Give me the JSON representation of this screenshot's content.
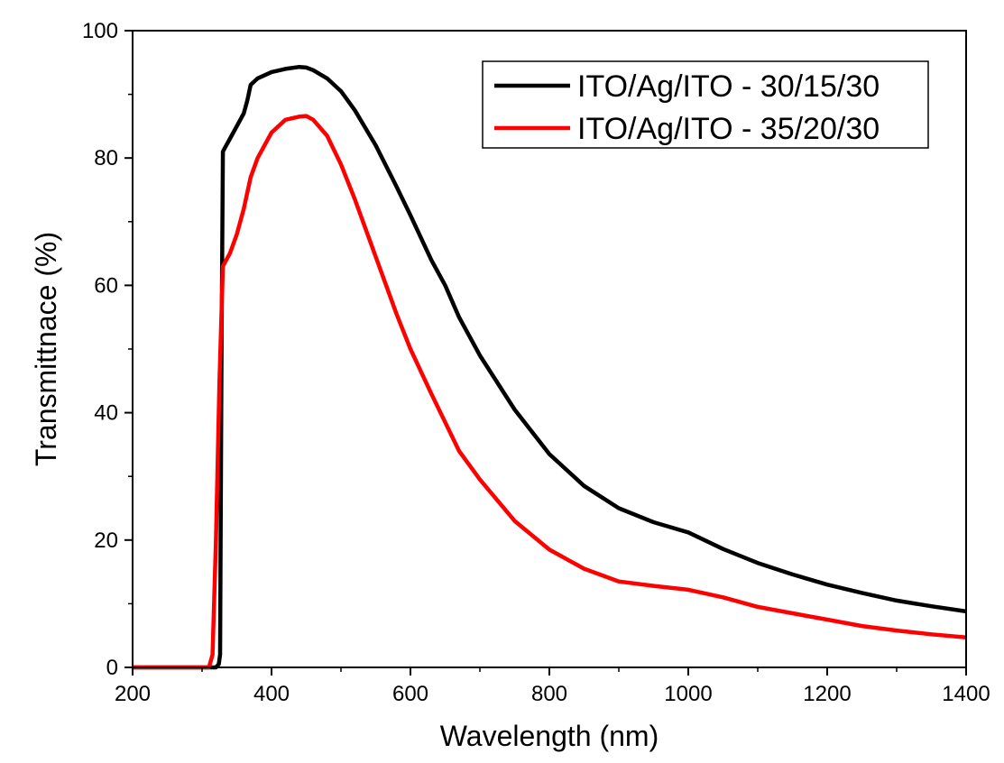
{
  "chart_data": {
    "type": "line",
    "title": "",
    "xlabel": "Wavelength (nm)",
    "ylabel": "Transmittnace (%)",
    "xlim": [
      200,
      1400
    ],
    "ylim": [
      0,
      100
    ],
    "x_ticks": [
      200,
      400,
      600,
      800,
      1000,
      1200,
      1400
    ],
    "y_ticks": [
      0,
      20,
      40,
      60,
      80,
      100
    ],
    "grid": false,
    "legend_position": "top-right",
    "series": [
      {
        "name": "ITO/Ag/ITO - 30/15/30",
        "color": "#000000",
        "x": [
          200,
          300,
          320,
          324,
          326,
          328,
          330,
          335,
          340,
          350,
          360,
          365,
          370,
          380,
          400,
          420,
          440,
          450,
          460,
          480,
          500,
          520,
          550,
          580,
          600,
          630,
          650,
          670,
          700,
          750,
          800,
          850,
          900,
          950,
          1000,
          1050,
          1100,
          1150,
          1200,
          1250,
          1300,
          1350,
          1400
        ],
        "y": [
          0,
          0,
          0,
          0.5,
          2,
          50,
          81,
          82,
          83,
          85,
          87,
          89,
          91.5,
          92.5,
          93.5,
          94,
          94.3,
          94.2,
          93.8,
          92.5,
          90.5,
          87.5,
          82,
          75.5,
          71,
          64,
          60,
          55,
          49,
          40.5,
          33.5,
          28.5,
          25,
          22.8,
          21.2,
          18.6,
          16.4,
          14.6,
          13,
          11.7,
          10.5,
          9.6,
          8.8
        ]
      },
      {
        "name": "ITO/Ag/ITO - 35/20/30",
        "color": "#ff0000",
        "x": [
          200,
          300,
          310,
          315,
          320,
          325,
          330,
          335,
          340,
          350,
          360,
          370,
          380,
          400,
          420,
          440,
          450,
          460,
          480,
          500,
          520,
          550,
          580,
          600,
          630,
          650,
          670,
          700,
          750,
          800,
          850,
          900,
          950,
          1000,
          1050,
          1100,
          1150,
          1200,
          1250,
          1300,
          1350,
          1400
        ],
        "y": [
          0,
          0,
          0,
          2,
          20,
          45,
          63,
          64,
          65,
          68,
          72,
          77,
          80,
          84,
          86,
          86.5,
          86.6,
          86,
          83.5,
          79,
          73.5,
          64.5,
          55.5,
          50,
          43,
          38.5,
          34,
          29.5,
          23,
          18.5,
          15.5,
          13.5,
          12.8,
          12.2,
          11,
          9.5,
          8.5,
          7.5,
          6.5,
          5.8,
          5.2,
          4.7
        ]
      }
    ]
  }
}
